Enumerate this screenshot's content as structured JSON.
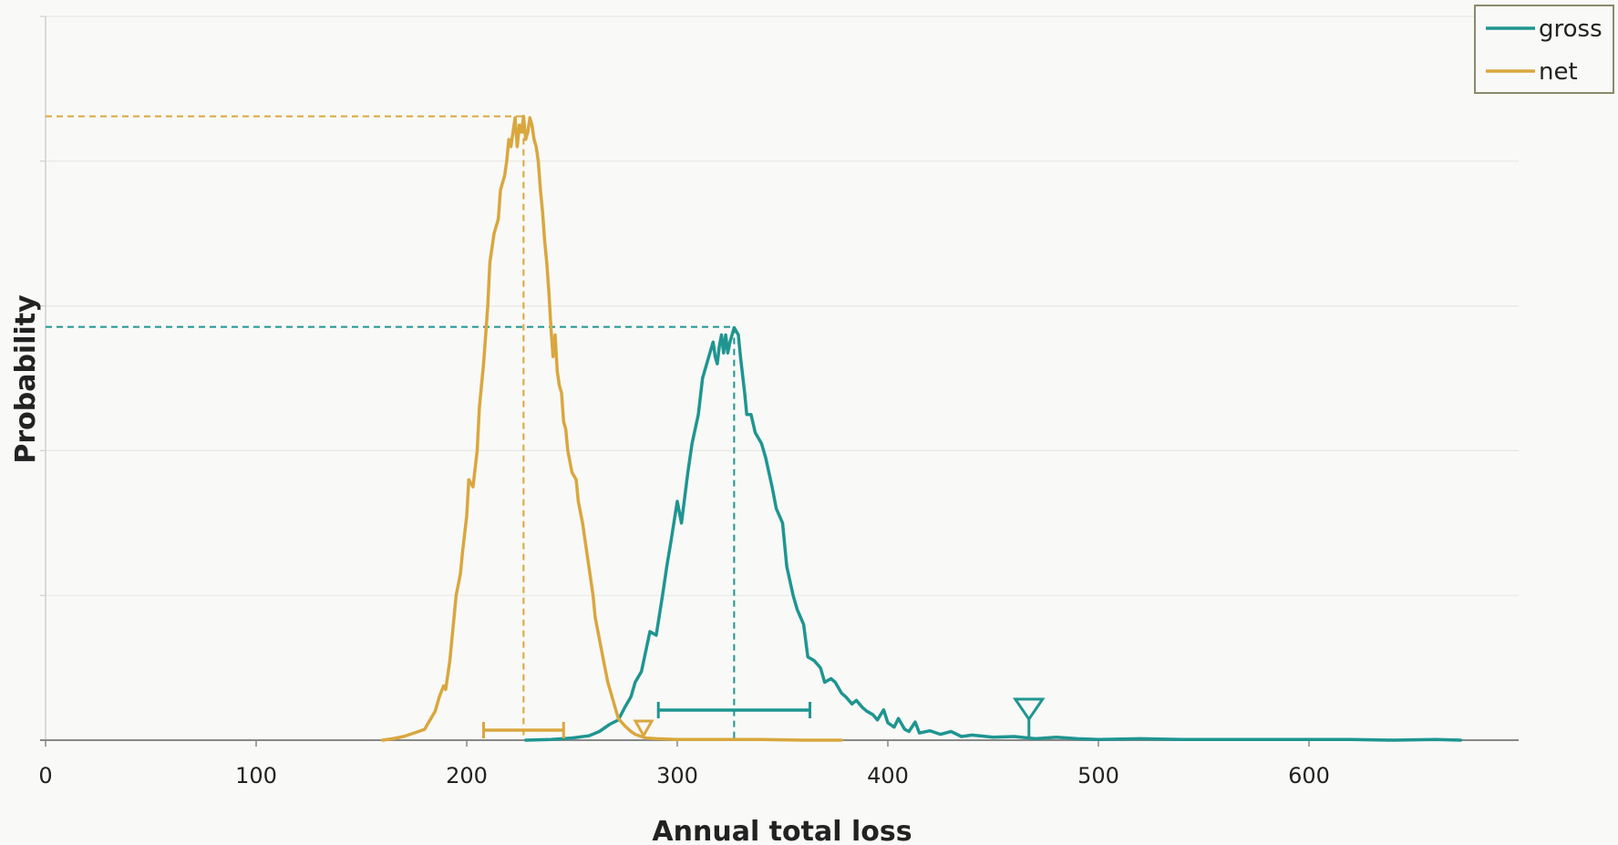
{
  "chart_data": {
    "type": "line",
    "title": "",
    "xlabel": "Annual total loss",
    "ylabel": "Probability",
    "xlim": [
      0,
      700
    ],
    "ylim": [
      0,
      1.0
    ],
    "x_ticks": [
      "0",
      "100",
      "200",
      "300",
      "400",
      "500",
      "600"
    ],
    "grid": true,
    "legend": "top-right",
    "series": [
      {
        "name": "gross",
        "color": "#1f9591",
        "mode": 327,
        "mode_prob": 0.571,
        "interval": [
          291,
          363
        ],
        "marker_x": 467,
        "x": [
          228,
          240,
          250,
          258,
          263,
          268,
          272,
          275,
          278,
          280,
          283,
          287,
          290,
          293,
          295,
          297,
          300,
          302,
          305,
          307,
          310,
          312,
          315,
          317,
          318,
          319,
          320,
          321,
          322,
          323,
          324,
          325,
          327,
          329,
          330,
          332,
          333,
          335,
          337,
          340,
          342,
          345,
          347,
          350,
          352,
          355,
          357,
          360,
          362,
          365,
          368,
          370,
          373,
          375,
          378,
          380,
          383,
          385,
          388,
          390,
          393,
          395,
          398,
          400,
          403,
          405,
          408,
          410,
          413,
          415,
          420,
          425,
          430,
          435,
          440,
          450,
          460,
          470,
          480,
          490,
          500,
          520,
          540,
          560,
          580,
          600,
          620,
          640,
          660,
          672
        ],
        "y": [
          0.0,
          0.001,
          0.003,
          0.006,
          0.012,
          0.022,
          0.028,
          0.045,
          0.06,
          0.08,
          0.095,
          0.15,
          0.145,
          0.2,
          0.24,
          0.275,
          0.33,
          0.3,
          0.37,
          0.41,
          0.45,
          0.5,
          0.53,
          0.55,
          0.53,
          0.52,
          0.545,
          0.56,
          0.535,
          0.56,
          0.535,
          0.55,
          0.57,
          0.56,
          0.53,
          0.48,
          0.45,
          0.45,
          0.425,
          0.41,
          0.39,
          0.35,
          0.32,
          0.3,
          0.24,
          0.2,
          0.18,
          0.16,
          0.115,
          0.11,
          0.1,
          0.08,
          0.085,
          0.08,
          0.065,
          0.06,
          0.05,
          0.055,
          0.045,
          0.04,
          0.035,
          0.028,
          0.042,
          0.024,
          0.018,
          0.03,
          0.015,
          0.012,
          0.025,
          0.01,
          0.013,
          0.008,
          0.012,
          0.005,
          0.007,
          0.004,
          0.005,
          0.002,
          0.004,
          0.002,
          0.001,
          0.002,
          0.001,
          0.001,
          0.001,
          0.001,
          0.001,
          0.0,
          0.001,
          0.0
        ]
      },
      {
        "name": "net",
        "color": "#d9a73e",
        "mode": 227,
        "mode_prob": 0.862,
        "interval": [
          208,
          246
        ],
        "marker_x": 284,
        "x": [
          160,
          165,
          170,
          175,
          180,
          183,
          185,
          187,
          189,
          190,
          192,
          193,
          195,
          197,
          198,
          200,
          201,
          203,
          205,
          206,
          208,
          210,
          211,
          213,
          215,
          216,
          218,
          219,
          220,
          221,
          222,
          223,
          224,
          225,
          226,
          227,
          228,
          229,
          230,
          231,
          232,
          233,
          234,
          235,
          236,
          237,
          238,
          239,
          240,
          241,
          242,
          243,
          244,
          245,
          246,
          247,
          248,
          250,
          252,
          253,
          255,
          256,
          258,
          260,
          261,
          263,
          265,
          267,
          268,
          270,
          272,
          275,
          278,
          280,
          283,
          285,
          290,
          300,
          320,
          340,
          360,
          378
        ],
        "y": [
          0.0,
          0.002,
          0.005,
          0.01,
          0.015,
          0.03,
          0.04,
          0.06,
          0.075,
          0.07,
          0.11,
          0.14,
          0.2,
          0.23,
          0.26,
          0.31,
          0.36,
          0.35,
          0.4,
          0.46,
          0.52,
          0.6,
          0.66,
          0.7,
          0.72,
          0.76,
          0.78,
          0.8,
          0.83,
          0.82,
          0.84,
          0.86,
          0.82,
          0.85,
          0.84,
          0.862,
          0.83,
          0.84,
          0.86,
          0.85,
          0.83,
          0.82,
          0.8,
          0.76,
          0.73,
          0.69,
          0.66,
          0.62,
          0.57,
          0.53,
          0.56,
          0.51,
          0.49,
          0.48,
          0.44,
          0.43,
          0.4,
          0.37,
          0.36,
          0.33,
          0.3,
          0.28,
          0.24,
          0.2,
          0.17,
          0.14,
          0.11,
          0.08,
          0.07,
          0.05,
          0.03,
          0.02,
          0.012,
          0.008,
          0.005,
          0.003,
          0.002,
          0.001,
          0.001,
          0.001,
          0.0,
          0.0
        ]
      }
    ]
  }
}
